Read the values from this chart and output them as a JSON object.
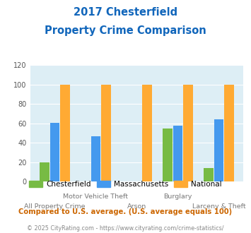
{
  "title_line1": "2017 Chesterfield",
  "title_line2": "Property Crime Comparison",
  "categories": [
    "All Property Crime",
    "Motor Vehicle Theft",
    "Arson",
    "Burglary",
    "Larceny & Theft"
  ],
  "x_labels_top": [
    "",
    "Motor Vehicle Theft",
    "",
    "Burglary",
    ""
  ],
  "x_labels_bottom": [
    "All Property Crime",
    "",
    "Arson",
    "",
    "Larceny & Theft"
  ],
  "chesterfield": [
    20,
    0,
    0,
    55,
    14
  ],
  "massachusetts": [
    61,
    47,
    0,
    58,
    64
  ],
  "national": [
    100,
    100,
    100,
    100,
    100
  ],
  "colors": {
    "chesterfield": "#77bb44",
    "massachusetts": "#4499ee",
    "national": "#ffaa33"
  },
  "ylim": [
    0,
    120
  ],
  "yticks": [
    0,
    20,
    40,
    60,
    80,
    100,
    120
  ],
  "title_color": "#1166bb",
  "plot_bg": "#ddeef5",
  "footnote1": "Compared to U.S. average. (U.S. average equals 100)",
  "footnote2": "© 2025 CityRating.com - https://www.cityrating.com/crime-statistics/",
  "footnote1_color": "#cc6600",
  "footnote2_color": "#888888"
}
